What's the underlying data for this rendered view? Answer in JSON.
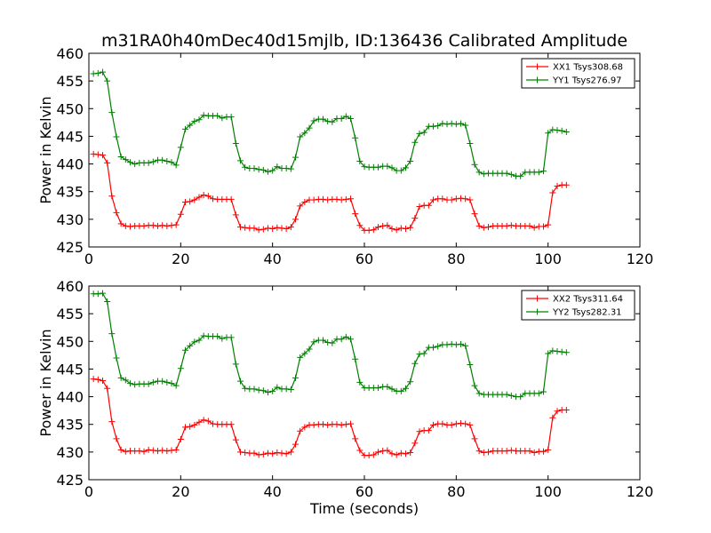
{
  "chart_data": [
    {
      "type": "line",
      "title": "m31RA0h40mDec40d15mjlb, ID:136436 Calibrated Amplitude",
      "xlabel": "",
      "ylabel": "Power in Kelvin",
      "xlim": [
        0,
        120
      ],
      "ylim": [
        425,
        460
      ],
      "xticks": [
        0,
        20,
        40,
        60,
        80,
        100,
        120
      ],
      "yticks": [
        425,
        430,
        435,
        440,
        445,
        450,
        455,
        460
      ],
      "legend": "top-right",
      "x": [
        1,
        2,
        3,
        4,
        5,
        6,
        7,
        8,
        9,
        10,
        11,
        12,
        13,
        14,
        15,
        16,
        17,
        18,
        19,
        20,
        21,
        22,
        23,
        24,
        25,
        26,
        27,
        28,
        29,
        30,
        31,
        32,
        33,
        34,
        35,
        36,
        37,
        38,
        39,
        40,
        41,
        42,
        43,
        44,
        45,
        46,
        47,
        48,
        49,
        50,
        51,
        52,
        53,
        54,
        55,
        56,
        57,
        58,
        59,
        60,
        61,
        62,
        63,
        64,
        65,
        66,
        67,
        68,
        69,
        70,
        71,
        72,
        73,
        74,
        75,
        76,
        77,
        78,
        79,
        80,
        81,
        82,
        83,
        84,
        85,
        86,
        87,
        88,
        89,
        90,
        91,
        92,
        93,
        94,
        95,
        96,
        97,
        98,
        99,
        100,
        101,
        102,
        103,
        104
      ],
      "series": [
        {
          "name": "XX1 Tsys308.68",
          "color": "#ff0000",
          "values": [
            441.8,
            441.7,
            441.6,
            440.2,
            434.2,
            431.2,
            429.2,
            428.8,
            428.7,
            428.8,
            428.8,
            428.8,
            428.9,
            428.9,
            428.8,
            428.9,
            428.8,
            428.9,
            429.0,
            430.9,
            433.1,
            433.2,
            433.5,
            434.0,
            434.4,
            434.2,
            433.7,
            433.6,
            433.6,
            433.6,
            433.6,
            430.8,
            428.6,
            428.5,
            428.4,
            428.4,
            428.1,
            428.2,
            428.4,
            428.3,
            428.5,
            428.4,
            428.3,
            428.6,
            430.0,
            432.4,
            433.1,
            433.5,
            433.5,
            433.6,
            433.6,
            433.5,
            433.6,
            433.6,
            433.5,
            433.6,
            433.7,
            431.0,
            428.9,
            428.0,
            428.0,
            428.1,
            428.6,
            428.8,
            428.9,
            428.3,
            428.1,
            428.4,
            428.3,
            428.5,
            430.2,
            432.3,
            432.5,
            432.5,
            433.5,
            433.7,
            433.7,
            433.5,
            433.5,
            433.7,
            433.8,
            433.7,
            433.5,
            431.0,
            428.8,
            428.5,
            428.6,
            428.8,
            428.8,
            428.8,
            428.8,
            428.9,
            428.8,
            428.8,
            428.8,
            428.8,
            428.5,
            428.7,
            428.7,
            429.0,
            434.8,
            436.0,
            436.2,
            436.2
          ]
        },
        {
          "name": "YY1 Tsys276.97",
          "color": "#008000",
          "values": [
            456.3,
            456.4,
            456.6,
            455.0,
            449.3,
            444.9,
            441.3,
            440.8,
            440.3,
            440.0,
            440.2,
            440.2,
            440.2,
            440.4,
            440.7,
            440.7,
            440.5,
            440.3,
            439.8,
            443.0,
            446.3,
            447.0,
            447.7,
            448.0,
            448.8,
            448.7,
            448.7,
            448.7,
            448.3,
            448.5,
            448.5,
            443.7,
            440.6,
            439.4,
            439.2,
            439.2,
            439.0,
            438.9,
            438.6,
            438.8,
            439.5,
            439.2,
            439.2,
            439.1,
            441.2,
            444.9,
            445.6,
            446.5,
            447.8,
            448.1,
            448.1,
            447.7,
            447.6,
            448.2,
            448.2,
            448.6,
            448.2,
            444.7,
            440.5,
            439.5,
            439.4,
            439.4,
            439.4,
            439.6,
            439.6,
            439.3,
            438.8,
            438.8,
            439.3,
            440.5,
            443.9,
            445.5,
            445.7,
            446.8,
            446.8,
            446.9,
            447.3,
            447.2,
            447.3,
            447.2,
            447.3,
            447.0,
            443.7,
            439.9,
            438.5,
            438.2,
            438.3,
            438.3,
            438.3,
            438.3,
            438.3,
            438.1,
            437.8,
            437.8,
            438.5,
            438.5,
            438.5,
            438.5,
            438.7,
            445.6,
            446.2,
            446.1,
            446.0,
            445.8
          ]
        }
      ]
    },
    {
      "type": "line",
      "title": "",
      "xlabel": "Time (seconds)",
      "ylabel": "Power in Kelvin",
      "xlim": [
        0,
        120
      ],
      "ylim": [
        425,
        460
      ],
      "xticks": [
        0,
        20,
        40,
        60,
        80,
        100,
        120
      ],
      "yticks": [
        425,
        430,
        435,
        440,
        445,
        450,
        455,
        460
      ],
      "legend": "top-right",
      "x": [
        1,
        2,
        3,
        4,
        5,
        6,
        7,
        8,
        9,
        10,
        11,
        12,
        13,
        14,
        15,
        16,
        17,
        18,
        19,
        20,
        21,
        22,
        23,
        24,
        25,
        26,
        27,
        28,
        29,
        30,
        31,
        32,
        33,
        34,
        35,
        36,
        37,
        38,
        39,
        40,
        41,
        42,
        43,
        44,
        45,
        46,
        47,
        48,
        49,
        50,
        51,
        52,
        53,
        54,
        55,
        56,
        57,
        58,
        59,
        60,
        61,
        62,
        63,
        64,
        65,
        66,
        67,
        68,
        69,
        70,
        71,
        72,
        73,
        74,
        75,
        76,
        77,
        78,
        79,
        80,
        81,
        82,
        83,
        84,
        85,
        86,
        87,
        88,
        89,
        90,
        91,
        92,
        93,
        94,
        95,
        96,
        97,
        98,
        99,
        100,
        101,
        102,
        103,
        104
      ],
      "series": [
        {
          "name": "XX2 Tsys311.64",
          "color": "#ff0000",
          "values": [
            443.2,
            443.1,
            442.9,
            441.5,
            435.5,
            432.4,
            430.4,
            430.1,
            430.2,
            430.2,
            430.2,
            430.1,
            430.4,
            430.3,
            430.2,
            430.3,
            430.2,
            430.3,
            430.4,
            432.3,
            434.5,
            434.6,
            434.9,
            435.4,
            435.8,
            435.6,
            435.1,
            435.0,
            435.0,
            435.0,
            435.0,
            432.2,
            430.0,
            429.9,
            429.8,
            429.8,
            429.5,
            429.6,
            429.8,
            429.7,
            429.9,
            429.8,
            429.7,
            430.0,
            431.4,
            433.8,
            434.5,
            434.9,
            434.9,
            435.0,
            435.0,
            434.9,
            435.0,
            435.0,
            434.9,
            435.0,
            435.1,
            432.4,
            430.3,
            429.4,
            429.4,
            429.5,
            430.0,
            430.2,
            430.3,
            429.7,
            429.5,
            429.8,
            429.7,
            429.9,
            431.6,
            433.7,
            433.9,
            433.9,
            434.9,
            435.1,
            435.1,
            434.9,
            434.9,
            435.1,
            435.2,
            435.1,
            434.9,
            432.4,
            430.2,
            429.9,
            430.0,
            430.2,
            430.2,
            430.2,
            430.2,
            430.3,
            430.2,
            430.2,
            430.2,
            430.2,
            429.9,
            430.1,
            430.1,
            430.4,
            436.2,
            437.4,
            437.6,
            437.6
          ]
        },
        {
          "name": "YY2 Tsys282.31",
          "color": "#008000",
          "values": [
            458.6,
            458.6,
            458.7,
            457.2,
            451.4,
            447.0,
            443.4,
            443.0,
            442.4,
            442.2,
            442.3,
            442.3,
            442.3,
            442.6,
            442.8,
            442.8,
            442.6,
            442.4,
            442.0,
            445.1,
            448.4,
            449.2,
            449.9,
            450.2,
            451.0,
            450.9,
            450.9,
            450.9,
            450.5,
            450.7,
            450.7,
            445.9,
            442.8,
            441.5,
            441.4,
            441.4,
            441.2,
            441.1,
            440.8,
            441.0,
            441.7,
            441.4,
            441.4,
            441.3,
            443.4,
            447.1,
            447.8,
            448.6,
            449.9,
            450.2,
            450.2,
            449.8,
            449.7,
            450.4,
            450.4,
            450.8,
            450.4,
            446.8,
            442.6,
            441.6,
            441.6,
            441.6,
            441.6,
            441.8,
            441.8,
            441.4,
            441.0,
            441.0,
            441.5,
            442.7,
            446.0,
            447.7,
            447.8,
            448.9,
            448.9,
            449.1,
            449.4,
            449.4,
            449.5,
            449.4,
            449.5,
            449.2,
            445.8,
            442.0,
            440.6,
            440.4,
            440.4,
            440.4,
            440.4,
            440.4,
            440.4,
            440.2,
            440.0,
            440.0,
            440.6,
            440.6,
            440.6,
            440.6,
            440.9,
            447.8,
            448.3,
            448.2,
            448.1,
            448.0
          ]
        }
      ]
    }
  ]
}
